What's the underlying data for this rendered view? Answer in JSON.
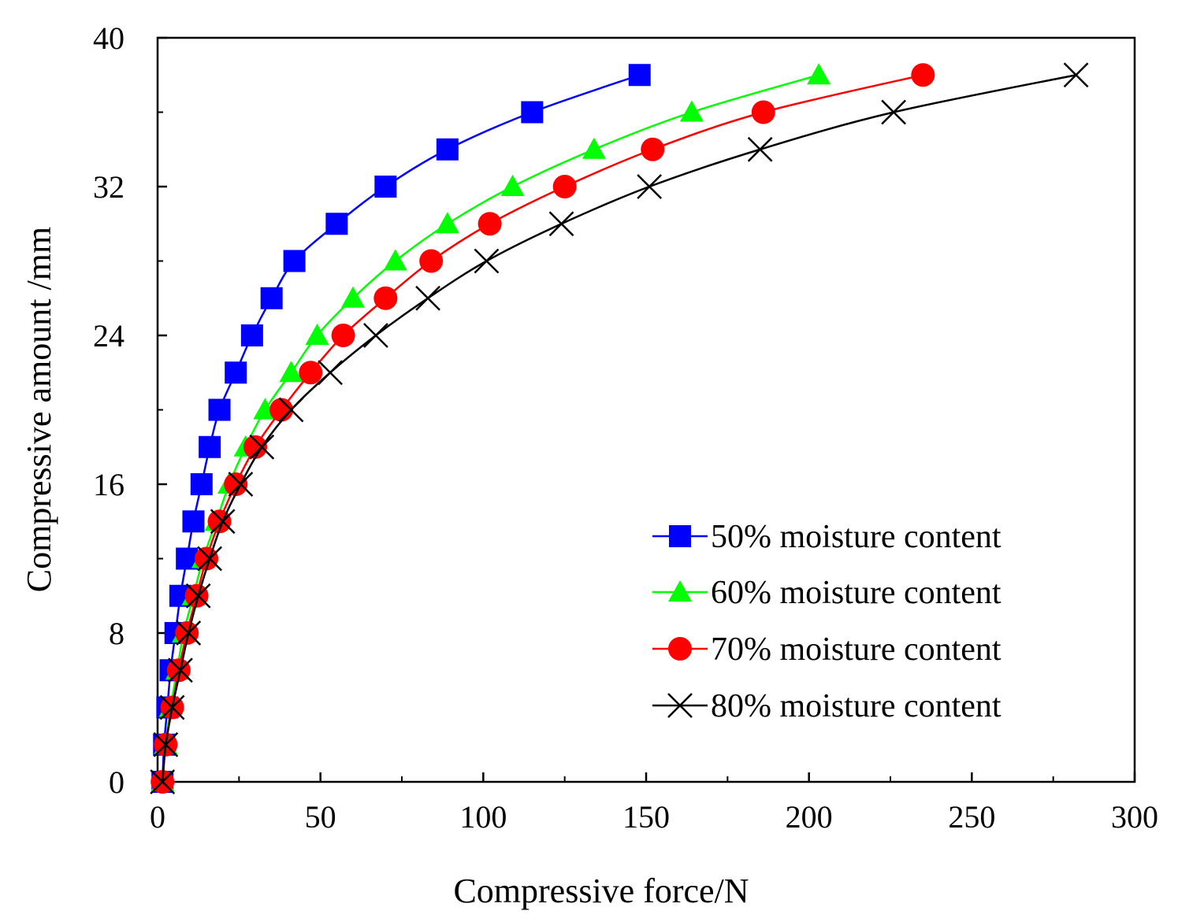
{
  "chart_data": {
    "type": "line",
    "title": "",
    "xlabel": "Compressive force/N",
    "ylabel": "Compressive amount /mm",
    "xlim": [
      0,
      300
    ],
    "ylim": [
      0,
      40
    ],
    "xticks": [
      0,
      50,
      100,
      150,
      200,
      250,
      300
    ],
    "yticks": [
      0,
      8,
      16,
      24,
      32,
      40
    ],
    "legend_position": "bottom-right",
    "grid": false,
    "series": [
      {
        "name": "50% moisture content",
        "color": "#0000ff",
        "marker": "square",
        "x": [
          1.5,
          2,
          3,
          4,
          5.5,
          7,
          9,
          11,
          13.5,
          16,
          19,
          24,
          29,
          35,
          42,
          55,
          70,
          89,
          115,
          148
        ],
        "y": [
          0,
          2,
          4,
          6,
          8,
          10,
          12,
          14,
          16,
          18,
          20,
          22,
          24,
          26,
          28,
          30,
          32,
          34,
          36,
          38
        ]
      },
      {
        "name": "60% moisture content",
        "color": "#00ff00",
        "marker": "triangle",
        "x": [
          1.5,
          2.5,
          4,
          6,
          8,
          11,
          14,
          18,
          22,
          27,
          33,
          41,
          49,
          60,
          73,
          89,
          109,
          134,
          164,
          203
        ],
        "y": [
          0,
          2,
          4,
          6,
          8,
          10,
          12,
          14,
          16,
          18,
          20,
          22,
          24,
          26,
          28,
          30,
          32,
          34,
          36,
          38
        ]
      },
      {
        "name": "70% moisture content",
        "color": "#ff0000",
        "marker": "circle",
        "x": [
          1.5,
          2.5,
          4.5,
          6.5,
          9,
          12,
          15,
          19,
          24,
          30,
          38,
          47,
          57,
          70,
          84,
          102,
          125,
          152,
          186,
          235
        ],
        "y": [
          0,
          2,
          4,
          6,
          8,
          10,
          12,
          14,
          16,
          18,
          20,
          22,
          24,
          26,
          28,
          30,
          32,
          34,
          36,
          38
        ]
      },
      {
        "name": "80% moisture content",
        "color": "#000000",
        "marker": "x",
        "x": [
          1.5,
          2.5,
          4.5,
          7,
          9.5,
          12.5,
          16,
          20,
          25.5,
          32,
          41,
          53,
          67,
          83,
          101,
          124,
          151,
          185,
          226,
          282
        ],
        "y": [
          0,
          2,
          4,
          6,
          8,
          10,
          12,
          14,
          16,
          18,
          20,
          22,
          24,
          26,
          28,
          30,
          32,
          34,
          36,
          38
        ]
      }
    ]
  }
}
